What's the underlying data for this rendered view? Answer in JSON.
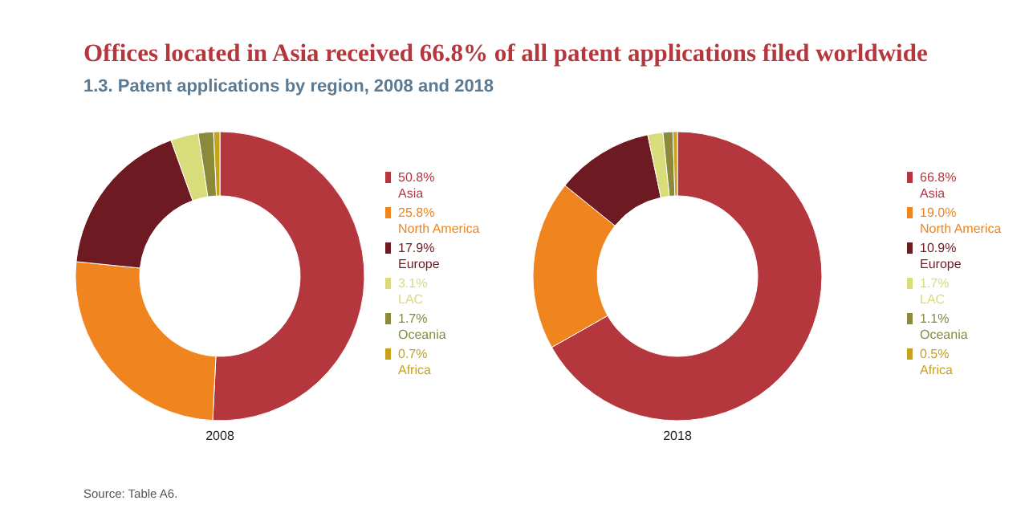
{
  "chart_data": [
    {
      "type": "donut",
      "title": "Offices located in Asia received 66.8% of all patent applications filed worldwide",
      "subtitle": "1.3. Patent applications by region, 2008 and 2018",
      "xlabel": "2008",
      "annotations": [
        "Source: Table A6."
      ],
      "legend": "right",
      "categories": [
        "Asia",
        "North America",
        "Europe",
        "LAC",
        "Oceania",
        "Africa"
      ],
      "values": [
        50.8,
        25.8,
        17.9,
        3.1,
        1.7,
        0.7
      ],
      "value_labels": [
        "50.8%",
        "25.8%",
        "17.9%",
        "3.1%",
        "1.7%",
        "0.7%"
      ],
      "colors": [
        "#b5373e",
        "#f0841f",
        "#6e1a22",
        "#d9dc7a",
        "#8a8a3a",
        "#c8a21e"
      ]
    },
    {
      "type": "donut",
      "xlabel": "2018",
      "legend": "right",
      "categories": [
        "Asia",
        "North America",
        "Europe",
        "LAC",
        "Oceania",
        "Africa"
      ],
      "values": [
        66.8,
        19.0,
        10.9,
        1.7,
        1.1,
        0.5
      ],
      "value_labels": [
        "66.8%",
        "19.0%",
        "10.9%",
        "1.7%",
        "1.1%",
        "0.5%"
      ],
      "colors": [
        "#b5373e",
        "#f0841f",
        "#6e1a22",
        "#d9dc7a",
        "#8a8a3a",
        "#c8a21e"
      ]
    }
  ]
}
